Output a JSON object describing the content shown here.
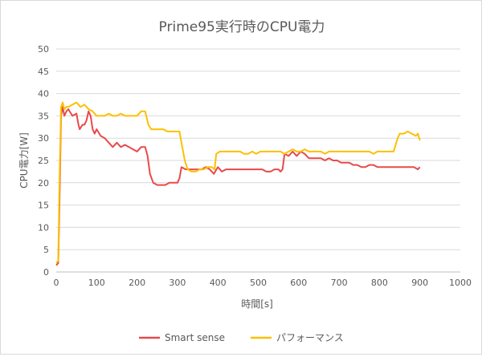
{
  "chart_data": {
    "type": "line",
    "title": "Prime95実行時のCPU電力",
    "xlabel": "時間[s]",
    "ylabel": "CPU電力[W]",
    "xlim": [
      0,
      1000
    ],
    "ylim": [
      0,
      50
    ],
    "x_ticks": [
      0,
      100,
      200,
      300,
      400,
      500,
      600,
      700,
      800,
      900,
      1000
    ],
    "y_ticks": [
      0,
      5,
      10,
      15,
      20,
      25,
      30,
      35,
      40,
      45,
      50
    ],
    "grid": "horizontal",
    "legend_position": "bottom",
    "series": [
      {
        "name": "Smart sense",
        "color": "#e84a4a",
        "points": [
          [
            0,
            1.5
          ],
          [
            5,
            2
          ],
          [
            8,
            15
          ],
          [
            12,
            35
          ],
          [
            16,
            37
          ],
          [
            20,
            35
          ],
          [
            25,
            36
          ],
          [
            30,
            36.5
          ],
          [
            40,
            35
          ],
          [
            50,
            35.5
          ],
          [
            55,
            33
          ],
          [
            58,
            32
          ],
          [
            65,
            33
          ],
          [
            70,
            33
          ],
          [
            75,
            34
          ],
          [
            80,
            36
          ],
          [
            85,
            35
          ],
          [
            90,
            32
          ],
          [
            95,
            31
          ],
          [
            100,
            32
          ],
          [
            110,
            30.5
          ],
          [
            120,
            30
          ],
          [
            130,
            29
          ],
          [
            140,
            28
          ],
          [
            150,
            29
          ],
          [
            160,
            28
          ],
          [
            170,
            28.5
          ],
          [
            180,
            28
          ],
          [
            190,
            27.5
          ],
          [
            200,
            27
          ],
          [
            210,
            28
          ],
          [
            220,
            28
          ],
          [
            226,
            26
          ],
          [
            232,
            22
          ],
          [
            240,
            20
          ],
          [
            250,
            19.5
          ],
          [
            260,
            19.5
          ],
          [
            270,
            19.5
          ],
          [
            280,
            20
          ],
          [
            290,
            20
          ],
          [
            300,
            20
          ],
          [
            305,
            21
          ],
          [
            310,
            23.5
          ],
          [
            320,
            23
          ],
          [
            330,
            23
          ],
          [
            340,
            23
          ],
          [
            350,
            23
          ],
          [
            360,
            23
          ],
          [
            370,
            23.5
          ],
          [
            380,
            23
          ],
          [
            390,
            22
          ],
          [
            400,
            23.5
          ],
          [
            410,
            22.5
          ],
          [
            420,
            23
          ],
          [
            430,
            23
          ],
          [
            440,
            23
          ],
          [
            450,
            23
          ],
          [
            460,
            23
          ],
          [
            470,
            23
          ],
          [
            480,
            23
          ],
          [
            490,
            23
          ],
          [
            500,
            23
          ],
          [
            510,
            23
          ],
          [
            520,
            22.5
          ],
          [
            530,
            22.5
          ],
          [
            540,
            23
          ],
          [
            550,
            23
          ],
          [
            555,
            22.5
          ],
          [
            560,
            23
          ],
          [
            565,
            26.5
          ],
          [
            575,
            26
          ],
          [
            585,
            27
          ],
          [
            595,
            26
          ],
          [
            605,
            27
          ],
          [
            615,
            26.5
          ],
          [
            625,
            25.5
          ],
          [
            635,
            25.5
          ],
          [
            645,
            25.5
          ],
          [
            655,
            25.5
          ],
          [
            665,
            25
          ],
          [
            675,
            25.5
          ],
          [
            685,
            25
          ],
          [
            695,
            25
          ],
          [
            705,
            24.5
          ],
          [
            715,
            24.5
          ],
          [
            725,
            24.5
          ],
          [
            735,
            24
          ],
          [
            745,
            24
          ],
          [
            755,
            23.5
          ],
          [
            765,
            23.5
          ],
          [
            775,
            24
          ],
          [
            785,
            24
          ],
          [
            795,
            23.5
          ],
          [
            805,
            23.5
          ],
          [
            815,
            23.5
          ],
          [
            825,
            23.5
          ],
          [
            835,
            23.5
          ],
          [
            845,
            23.5
          ],
          [
            855,
            23.5
          ],
          [
            865,
            23.5
          ],
          [
            875,
            23.5
          ],
          [
            885,
            23.5
          ],
          [
            895,
            23
          ],
          [
            900,
            23.5
          ]
        ]
      },
      {
        "name": "パフォーマンス",
        "color": "#fcc000",
        "points": [
          [
            0,
            2
          ],
          [
            5,
            2.5
          ],
          [
            8,
            20
          ],
          [
            12,
            37
          ],
          [
            16,
            38
          ],
          [
            20,
            36.5
          ],
          [
            25,
            37
          ],
          [
            30,
            37
          ],
          [
            40,
            37.5
          ],
          [
            50,
            38
          ],
          [
            60,
            37
          ],
          [
            70,
            37.5
          ],
          [
            80,
            36.5
          ],
          [
            90,
            36
          ],
          [
            100,
            35
          ],
          [
            110,
            35
          ],
          [
            120,
            35
          ],
          [
            130,
            35.5
          ],
          [
            140,
            35
          ],
          [
            150,
            35
          ],
          [
            160,
            35.5
          ],
          [
            170,
            35
          ],
          [
            180,
            35
          ],
          [
            190,
            35
          ],
          [
            200,
            35
          ],
          [
            210,
            36
          ],
          [
            220,
            36
          ],
          [
            228,
            33
          ],
          [
            235,
            32
          ],
          [
            245,
            32
          ],
          [
            255,
            32
          ],
          [
            265,
            32
          ],
          [
            275,
            31.5
          ],
          [
            285,
            31.5
          ],
          [
            295,
            31.5
          ],
          [
            305,
            31.5
          ],
          [
            312,
            28
          ],
          [
            318,
            25
          ],
          [
            325,
            23
          ],
          [
            335,
            22.5
          ],
          [
            345,
            22.5
          ],
          [
            355,
            23
          ],
          [
            365,
            23
          ],
          [
            375,
            23.5
          ],
          [
            385,
            23.5
          ],
          [
            392,
            23
          ],
          [
            396,
            26.5
          ],
          [
            405,
            27
          ],
          [
            415,
            27
          ],
          [
            425,
            27
          ],
          [
            435,
            27
          ],
          [
            445,
            27
          ],
          [
            455,
            27
          ],
          [
            465,
            26.5
          ],
          [
            475,
            26.5
          ],
          [
            485,
            27
          ],
          [
            495,
            26.5
          ],
          [
            505,
            27
          ],
          [
            515,
            27
          ],
          [
            525,
            27
          ],
          [
            535,
            27
          ],
          [
            545,
            27
          ],
          [
            555,
            27
          ],
          [
            565,
            26.5
          ],
          [
            575,
            27
          ],
          [
            585,
            27.5
          ],
          [
            595,
            27
          ],
          [
            605,
            27
          ],
          [
            615,
            27.5
          ],
          [
            625,
            27
          ],
          [
            635,
            27
          ],
          [
            645,
            27
          ],
          [
            655,
            27
          ],
          [
            665,
            26.5
          ],
          [
            675,
            27
          ],
          [
            685,
            27
          ],
          [
            695,
            27
          ],
          [
            705,
            27
          ],
          [
            715,
            27
          ],
          [
            725,
            27
          ],
          [
            735,
            27
          ],
          [
            745,
            27
          ],
          [
            755,
            27
          ],
          [
            765,
            27
          ],
          [
            775,
            27
          ],
          [
            785,
            26.5
          ],
          [
            795,
            27
          ],
          [
            805,
            27
          ],
          [
            815,
            27
          ],
          [
            825,
            27
          ],
          [
            835,
            27
          ],
          [
            840,
            28.5
          ],
          [
            845,
            30
          ],
          [
            850,
            31
          ],
          [
            860,
            31
          ],
          [
            870,
            31.5
          ],
          [
            880,
            31
          ],
          [
            890,
            30.5
          ],
          [
            895,
            31
          ],
          [
            900,
            29.5
          ]
        ]
      }
    ]
  }
}
